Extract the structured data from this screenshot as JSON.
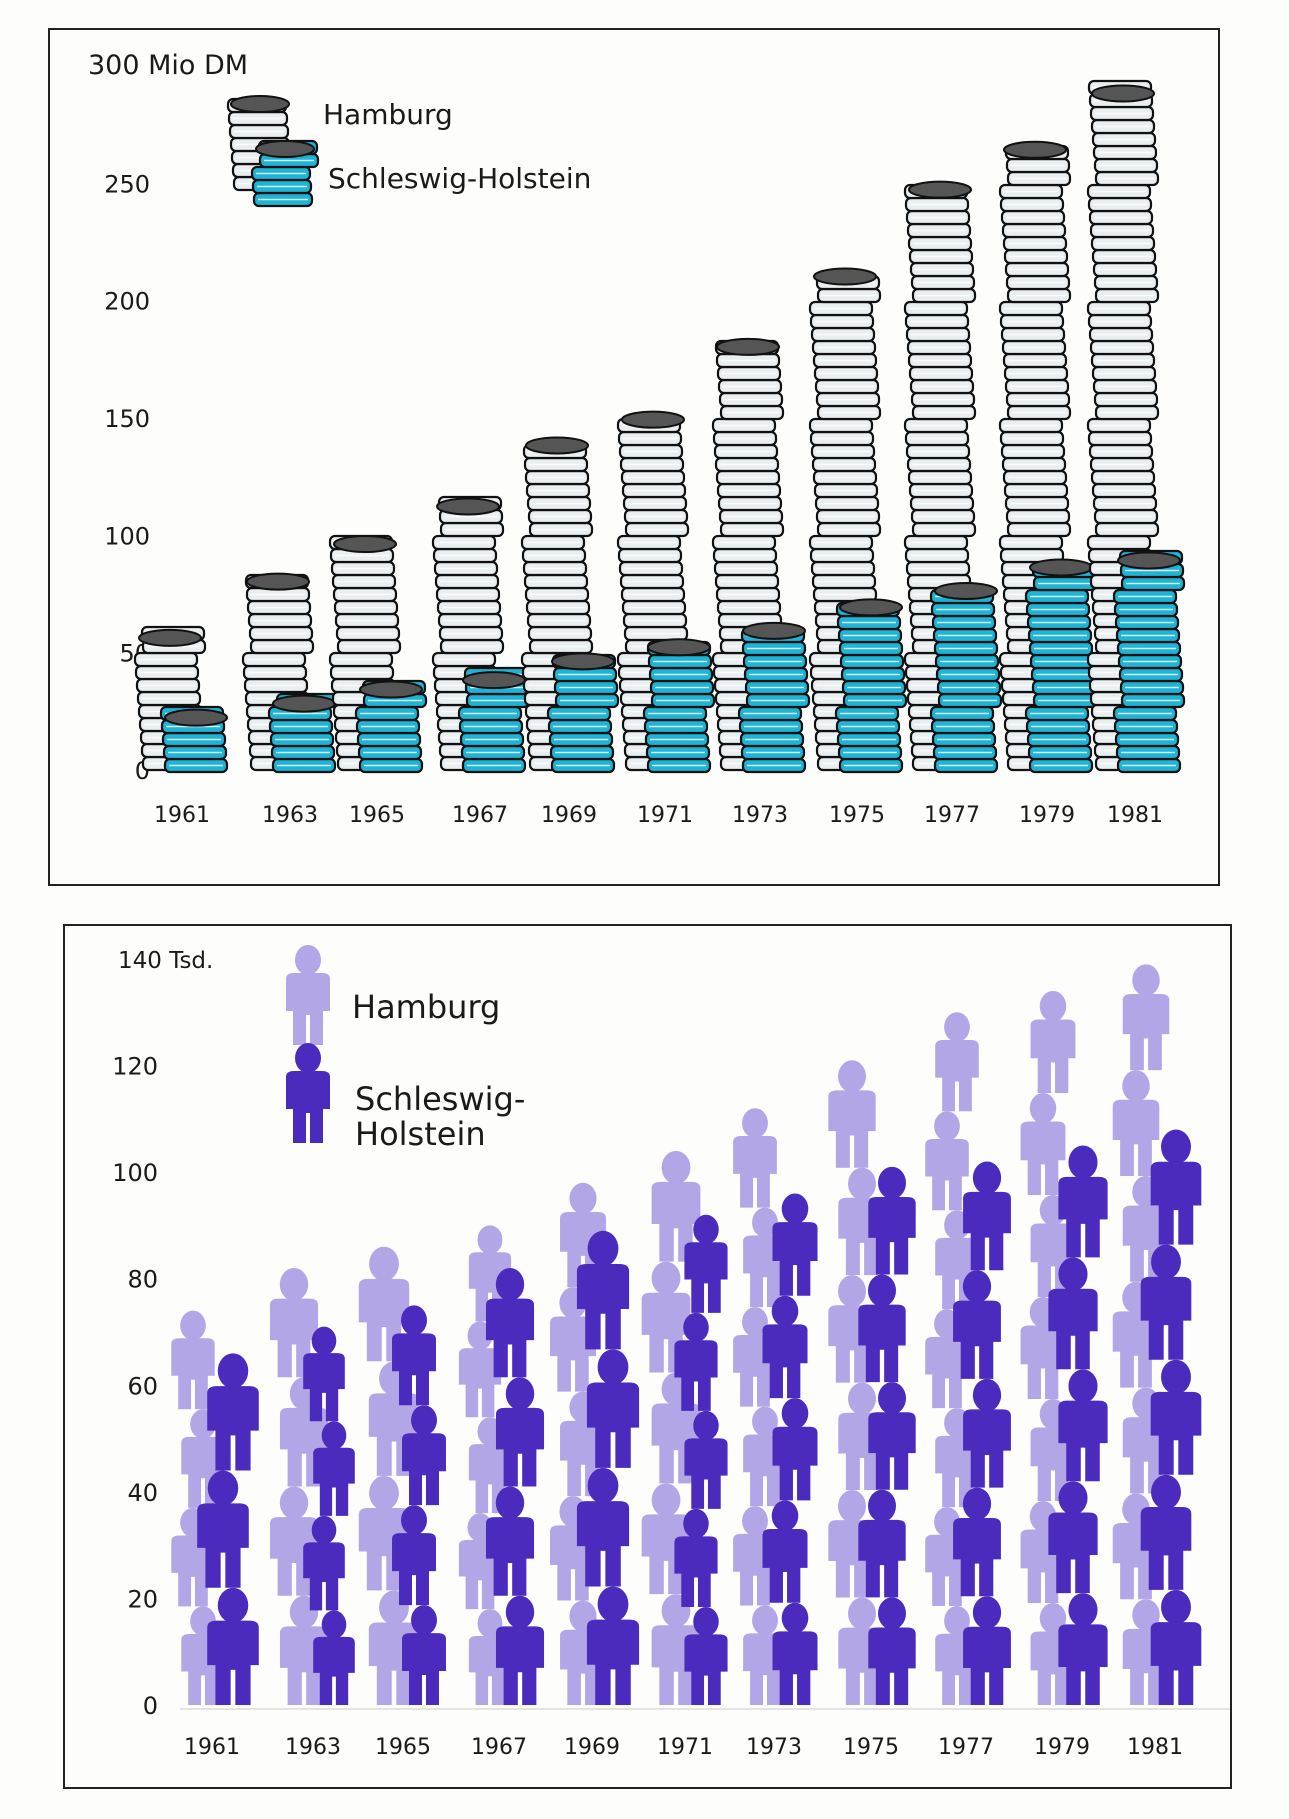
{
  "chart_data": [
    {
      "type": "bar",
      "style": "pictogram-coin-stacks",
      "title": "",
      "ylabel": "300 Mio DM",
      "ylim": [
        0,
        300
      ],
      "yticks": [
        "0",
        "50",
        "100",
        "150",
        "200",
        "250"
      ],
      "categories": [
        "1961",
        "1963",
        "1965",
        "1967",
        "1969",
        "1971",
        "1973",
        "1975",
        "1977",
        "1979",
        "1981"
      ],
      "legend": [
        "Hamburg",
        "Schleswig-Holstein"
      ],
      "legend_position": "top-left",
      "series": [
        {
          "name": "Hamburg",
          "color": "#e9eef0",
          "values": [
            58,
            82,
            98,
            114,
            140,
            151,
            182,
            212,
            249,
            266,
            290
          ]
        },
        {
          "name": "Schleswig-Holstein",
          "color": "#1fb3d6",
          "values": [
            24,
            30,
            36,
            40,
            48,
            54,
            61,
            71,
            78,
            88,
            91
          ]
        }
      ]
    },
    {
      "type": "bar",
      "style": "pictogram-people",
      "title": "",
      "ylabel": "140 Tsd.",
      "ylim": [
        0,
        140
      ],
      "yticks": [
        "0",
        "20",
        "40",
        "60",
        "80",
        "100",
        "120"
      ],
      "categories": [
        "1961",
        "1963",
        "1965",
        "1967",
        "1969",
        "1971",
        "1973",
        "1975",
        "1977",
        "1979",
        "1981"
      ],
      "legend": [
        "Hamburg",
        "Schleswig-\nHolstein"
      ],
      "legend_lines": [
        "Schleswig-",
        "Holstein"
      ],
      "legend_position": "top-left",
      "series": [
        {
          "name": "Hamburg",
          "color": "#b3a6e6",
          "values": [
            74,
            82,
            86,
            90,
            98,
            104,
            112,
            121,
            130,
            134,
            139
          ]
        },
        {
          "name": "Schleswig-Holstein",
          "color": "#4a2bbd",
          "values": [
            66,
            71,
            75,
            82,
            89,
            92,
            96,
            101,
            102,
            105,
            108
          ]
        }
      ]
    }
  ]
}
